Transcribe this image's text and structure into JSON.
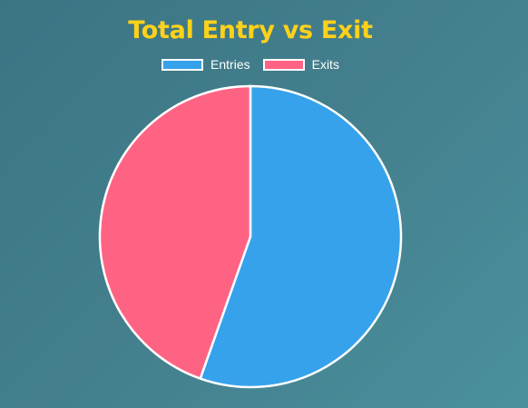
{
  "chart_data": {
    "type": "pie",
    "title": "Total Entry vs Exit",
    "legend_position": "top",
    "categories": [
      "Entries",
      "Exits"
    ],
    "values": [
      55.4,
      44.6
    ],
    "colors": [
      "#36a2eb",
      "#ff6384"
    ]
  }
}
